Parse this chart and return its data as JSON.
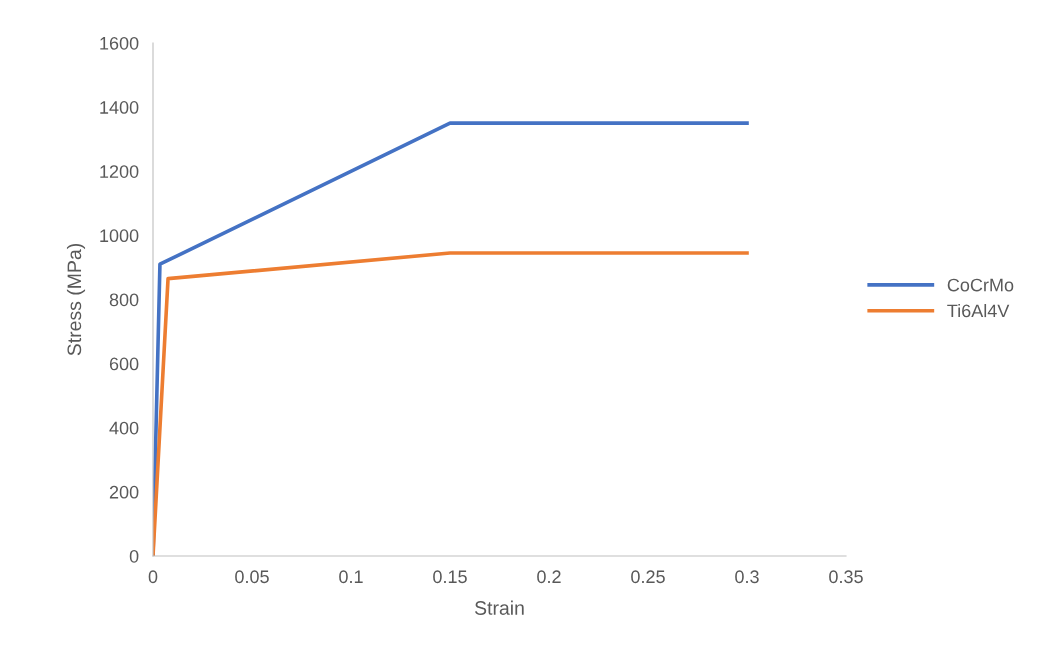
{
  "chart_data": {
    "type": "line",
    "xlabel": "Strain",
    "ylabel": "Stress (MPa)",
    "xlim": [
      0,
      0.35
    ],
    "xticks": [
      0,
      0.05,
      0.1,
      0.15,
      0.2,
      0.25,
      0.3,
      0.35
    ],
    "ylim": [
      0,
      1600
    ],
    "yticks": [
      0,
      200,
      400,
      600,
      800,
      1000,
      1200,
      1400,
      1600
    ],
    "grid": false,
    "legend": "right",
    "marker": "none",
    "line_style": "solid",
    "series": [
      {
        "name": "CoCrMo",
        "color": "#4472c4",
        "x": [
          0,
          0.0035,
          0.15,
          0.3
        ],
        "values": [
          0,
          910,
          1350,
          1350
        ]
      },
      {
        "name": "Ti6Al4V",
        "color": "#ed7d31",
        "x": [
          0,
          0.0076,
          0.15,
          0.3
        ],
        "values": [
          0,
          865,
          945,
          945
        ]
      }
    ]
  }
}
